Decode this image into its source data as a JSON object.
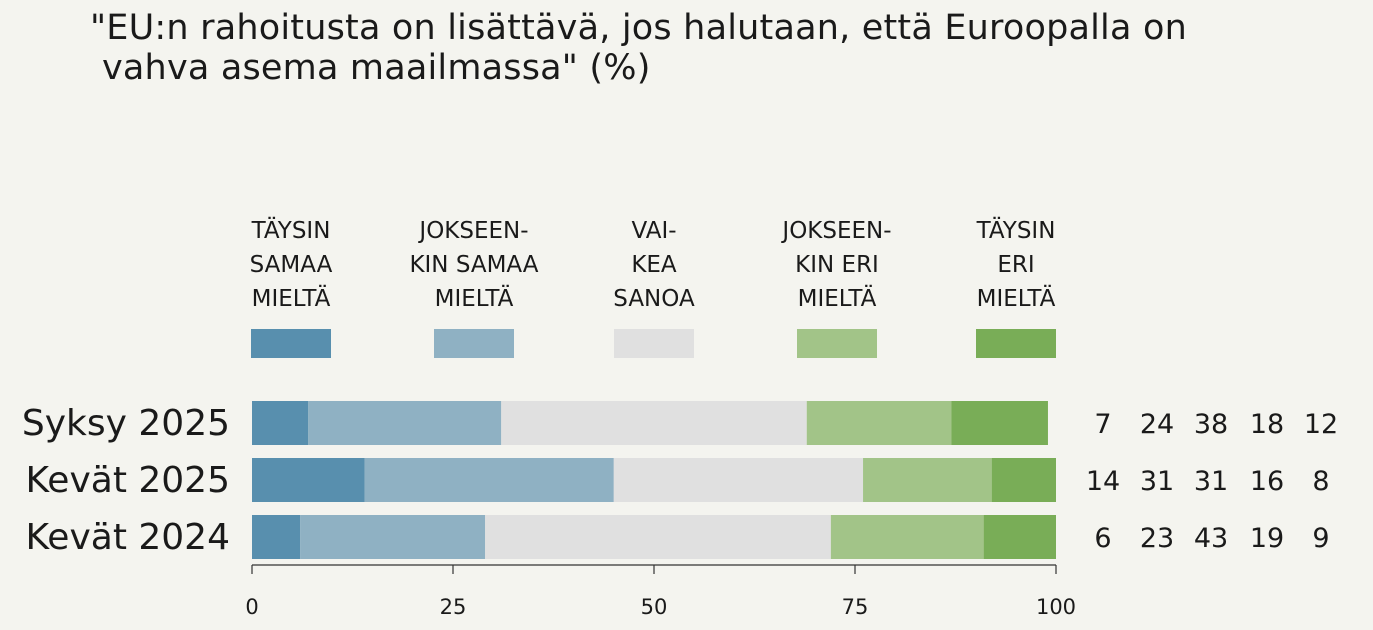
{
  "chart_data": {
    "type": "bar",
    "orientation": "horizontal",
    "stacked": true,
    "title_lines": [
      "\"EU:n rahoitusta on lisättävä, jos halutaan, että Euroopalla on",
      "vahva asema maailmassa\" (%)"
    ],
    "categories": [
      "Syksy 2025",
      "Kevät 2025",
      "Kevät 2024"
    ],
    "series": [
      {
        "name": "TÄYSIN SAMAA MIELTÄ",
        "label_lines": [
          "TÄYSIN",
          "SAMAA",
          "MIELTÄ"
        ],
        "color": "#588fae",
        "values": [
          7,
          14,
          6
        ]
      },
      {
        "name": "JOKSEEN-KIN SAMAA MIELTÄ",
        "label_lines": [
          "JOKSEEN-",
          "KIN SAMAA",
          "MIELTÄ"
        ],
        "color": "#8fb1c3",
        "values": [
          24,
          31,
          23
        ]
      },
      {
        "name": "VAI-KEA SANOA",
        "label_lines": [
          "VAI-",
          "KEA",
          "SANOA"
        ],
        "color": "#e0e0e0",
        "values": [
          38,
          31,
          43
        ]
      },
      {
        "name": "JOKSEEN-KIN ERI MIELTÄ",
        "label_lines": [
          "JOKSEEN-",
          "KIN ERI",
          "MIELTÄ"
        ],
        "color": "#a2c488",
        "values": [
          18,
          16,
          19
        ]
      },
      {
        "name": "TÄYSIN ERI MIELTÄ",
        "label_lines": [
          "TÄYSIN",
          "ERI",
          "MIELTÄ"
        ],
        "color": "#79ad57",
        "values": [
          12,
          8,
          9
        ]
      }
    ],
    "xlim": [
      0,
      100
    ],
    "xticks": [
      0,
      25,
      50,
      75,
      100
    ],
    "xlabel": "",
    "ylabel": "",
    "legend_position": "top",
    "value_labels_position": "right"
  }
}
